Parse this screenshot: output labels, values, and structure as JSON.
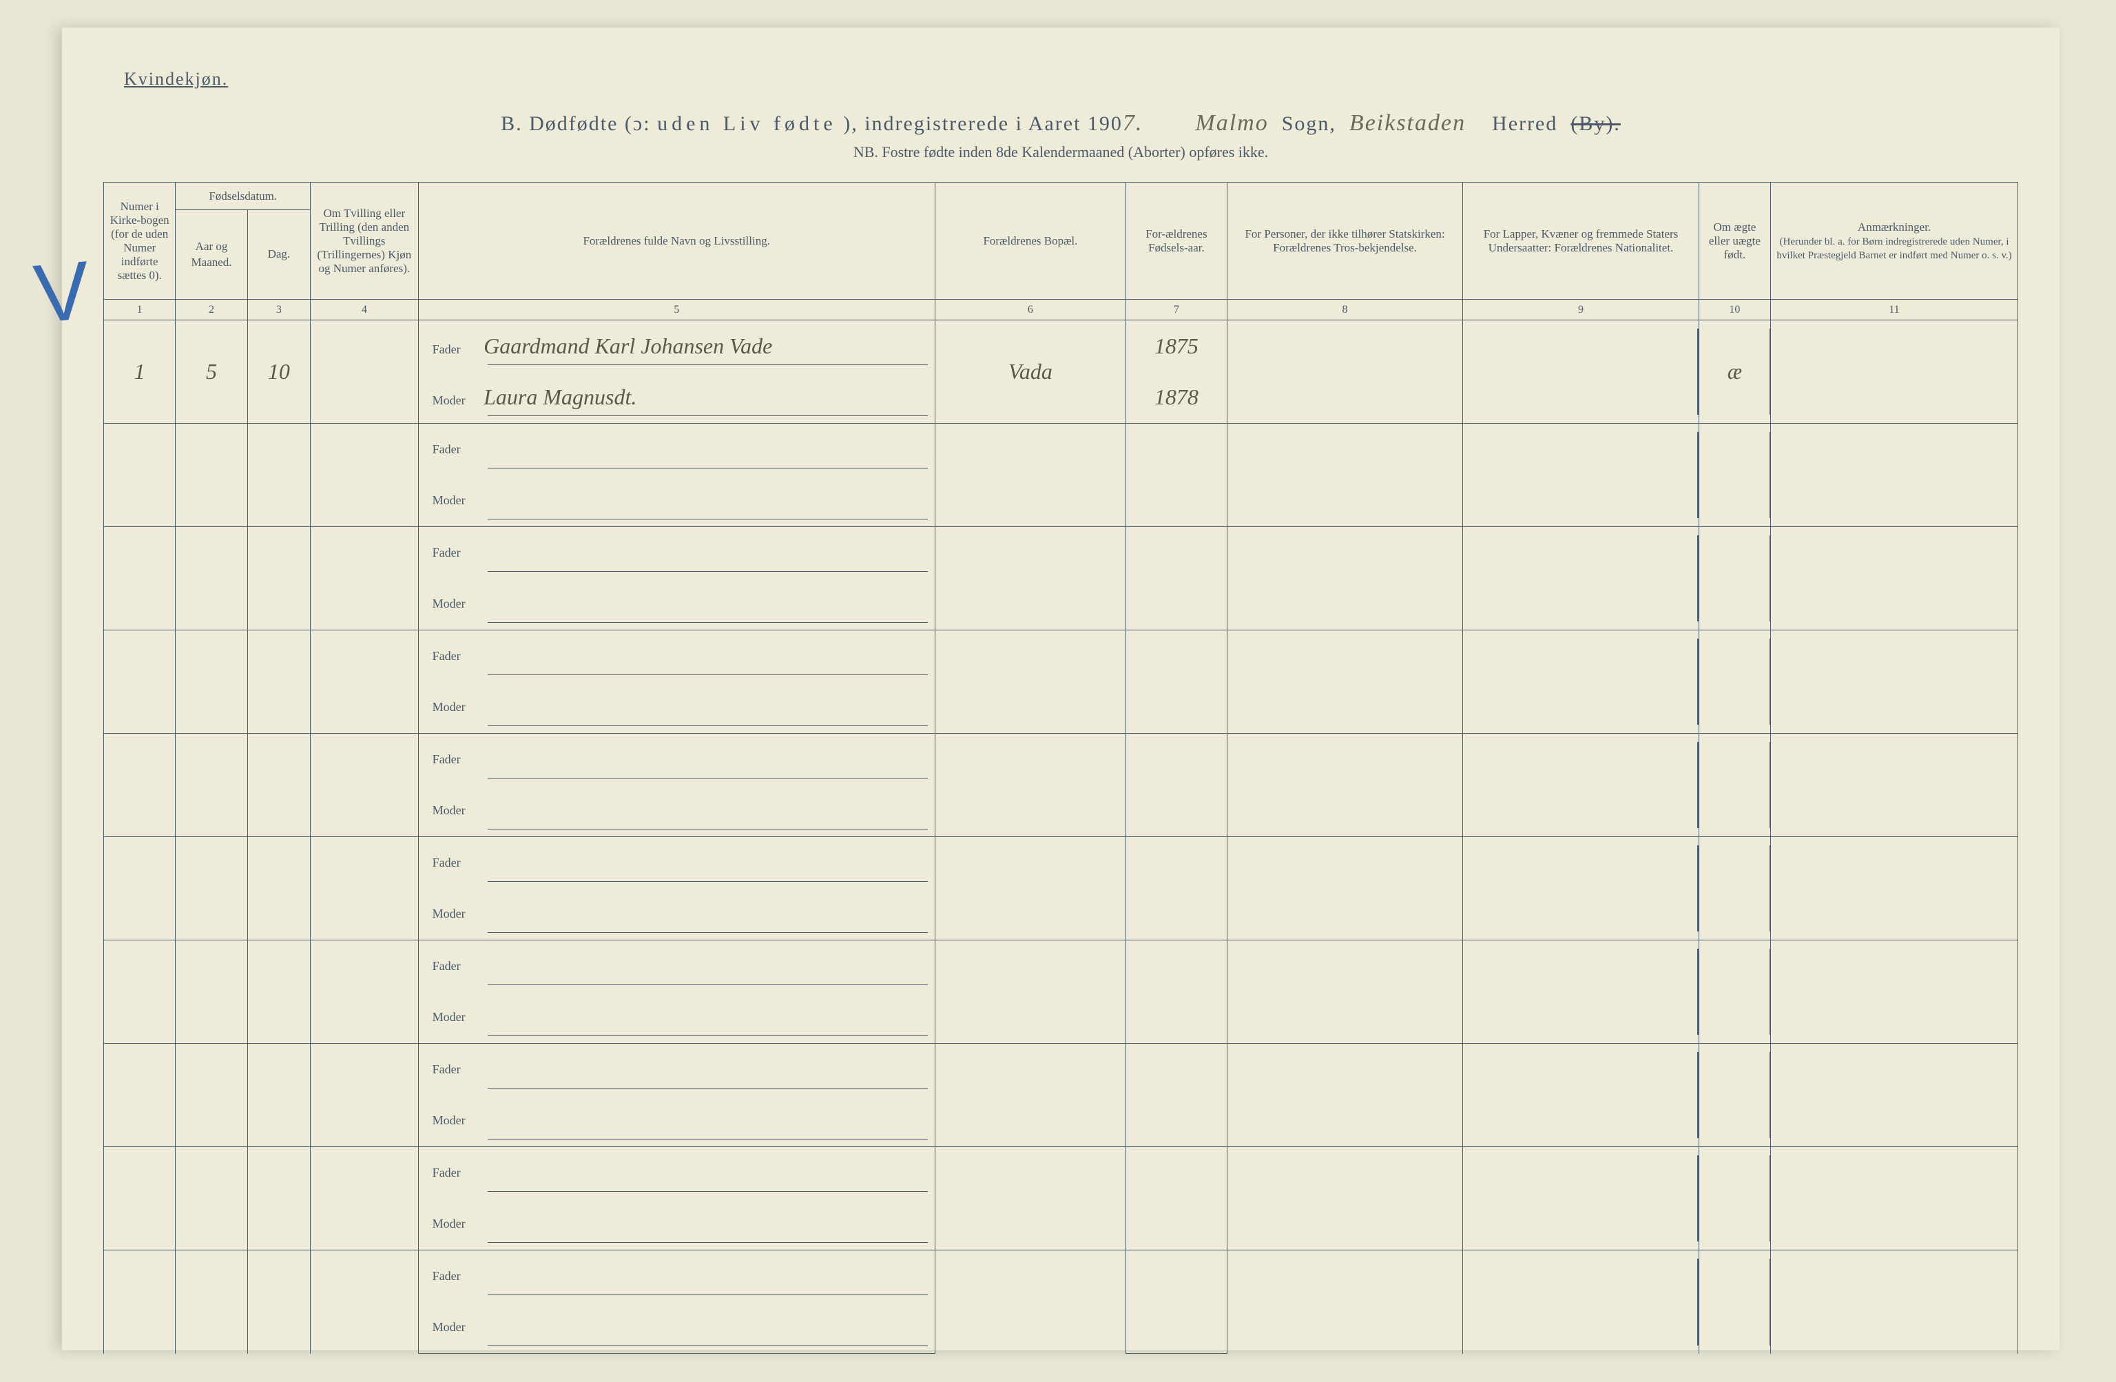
{
  "header": {
    "gender_label": "Kvindekjøn.",
    "title_prefix": "B.  Dødfødte (ɔ:",
    "title_spaced": "uden Liv fødte",
    "title_suffix": "), indregistrerede i Aaret 190",
    "year_digit": "7.",
    "sogn_value": "Malmo",
    "sogn_label": "Sogn,",
    "herred_value": "Beikstaden",
    "herred_label": "Herred",
    "by_struck": "(By).",
    "subtitle": "NB.  Fostre fødte inden 8de Kalendermaaned (Aborter) opføres ikke."
  },
  "columns": {
    "c1": "Numer i Kirke-bogen (for de uden Numer indførte sættes 0).",
    "c2_group": "Fødselsdatum.",
    "c2": "Aar og Maaned.",
    "c3": "Dag.",
    "c4": "Om Tvilling eller Trilling (den anden Tvillings (Trillingernes) Kjøn og Numer anføres).",
    "c5": "Forældrenes fulde Navn og Livsstilling.",
    "c6": "Forældrenes Bopæl.",
    "c7": "For-ældrenes Fødsels-aar.",
    "c8": "For Personer, der ikke tilhører Statskirken: Forældrenes Tros-bekjendelse.",
    "c9": "For Lapper, Kvæner og fremmede Staters Undersaatter: Forældrenes Nationalitet.",
    "c10": "Om ægte eller uægte født.",
    "c11": "Anmærkninger.",
    "c11_sub": "(Herunder bl. a. for Børn indregistrerede uden Numer, i hvilket Præstegjeld Barnet er indført med Numer o. s. v.)"
  },
  "colnums": [
    "1",
    "2",
    "3",
    "4",
    "5",
    "6",
    "7",
    "8",
    "9",
    "10",
    "11"
  ],
  "labels": {
    "fader": "Fader",
    "moder": "Moder"
  },
  "entries": [
    {
      "numer": "1",
      "maaned": "5",
      "dag": "10",
      "tvilling": "",
      "fader_text": "Gaardmand Karl Johansen Vade",
      "moder_text": "Laura Magnusdt.",
      "bopael": "Vada",
      "fader_aar": "1875",
      "moder_aar": "1878",
      "tros": "",
      "nat": "",
      "aegte": "æ",
      "anm": ""
    }
  ],
  "style": {
    "bg_page": "#eeebd9",
    "bg_body": "#e8e6d4",
    "ink": "#4a5a6a",
    "hand_ink": "#5a5a48",
    "check_color": "#3a6ab0",
    "border_width": 1.5,
    "body_font_size": 18,
    "title_font_size": 30,
    "hand_font_size": 32,
    "num_blank_rows": 9
  }
}
